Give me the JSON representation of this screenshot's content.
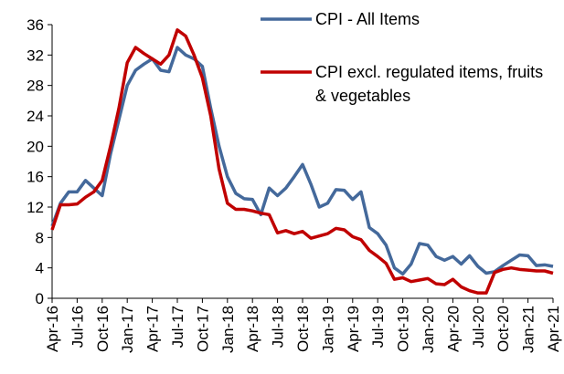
{
  "chart_data": {
    "type": "line",
    "categories": [
      "Apr-16",
      null,
      null,
      "Jul-16",
      null,
      null,
      "Oct-16",
      null,
      null,
      "Jan-17",
      null,
      null,
      "Apr-17",
      null,
      null,
      "Jul-17",
      null,
      null,
      "Oct-17",
      null,
      null,
      "Jan-18",
      null,
      null,
      "Apr-18",
      null,
      null,
      "Jul-18",
      null,
      null,
      "Oct-18",
      null,
      null,
      "Jan-19",
      null,
      null,
      "Apr-19",
      null,
      null,
      "Jul-19",
      null,
      null,
      "Oct-19",
      null,
      null,
      "Jan-20",
      null,
      null,
      "Apr-20",
      null,
      null,
      "Jul-20",
      null,
      null,
      "Oct-20",
      null,
      null,
      "Jan-21",
      null,
      null,
      "Apr-21"
    ],
    "series": [
      {
        "name": "CPI - All Items",
        "color": "#44699b",
        "values": [
          9.5,
          12.5,
          14,
          14,
          15.5,
          14.5,
          13.5,
          19,
          23.5,
          28,
          30,
          30.8,
          31.5,
          30,
          29.8,
          33,
          32,
          31.5,
          30.5,
          25,
          20,
          16,
          13.8,
          13.1,
          13,
          11,
          14.5,
          13.5,
          14.5,
          16,
          17.6,
          15,
          12,
          12.5,
          14.3,
          14.2,
          13,
          14,
          9.3,
          8.5,
          7,
          4,
          3.2,
          4.5,
          7.2,
          7,
          5.5,
          5,
          5.5,
          4.5,
          5.6,
          4.2,
          3.3,
          3.5,
          4.3,
          5,
          5.7,
          5.6,
          4.3,
          4.4,
          4.2
        ]
      },
      {
        "name": "CPI excl. regulated items, fruits & vegetables",
        "color": "#c00000",
        "values": [
          9,
          12.3,
          12.3,
          12.4,
          13.3,
          14,
          15.5,
          20,
          25,
          31,
          33,
          32.2,
          31.5,
          30.8,
          32,
          35.3,
          34.5,
          32,
          29,
          24,
          17,
          12.5,
          11.7,
          11.7,
          11.5,
          11.2,
          11,
          8.6,
          8.9,
          8.5,
          8.8,
          7.9,
          8.2,
          8.5,
          9.2,
          9,
          8.1,
          7.7,
          6.3,
          5.5,
          4.6,
          2.5,
          2.7,
          2.2,
          2.4,
          2.6,
          1.9,
          1.8,
          2.5,
          1.5,
          1,
          0.7,
          0.7,
          3.4,
          3.8,
          4,
          3.8,
          3.7,
          3.6,
          3.6,
          3.3
        ]
      }
    ],
    "ylim": [
      0,
      36
    ],
    "yticks": [
      0,
      4,
      8,
      12,
      16,
      20,
      24,
      28,
      32,
      36
    ],
    "grid": false,
    "legend": "upper right"
  }
}
